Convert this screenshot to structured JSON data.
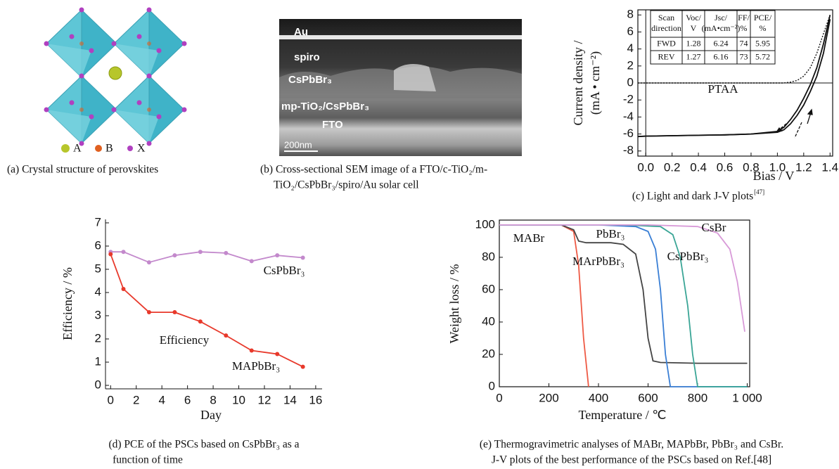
{
  "panel_a": {
    "legend": [
      "A",
      "B",
      "X"
    ],
    "caption": "(a) Crystal structure of perovskites"
  },
  "panel_b": {
    "layers": [
      "Au",
      "spiro",
      "CsPbBr₃",
      "mp-TiO₂/CsPbBr₃",
      "FTO"
    ],
    "scale": "200nm",
    "caption": [
      "(b) Cross-sectional SEM image of a FTO/c-TiO₂/m-",
      "TiO₂/CsPbBr₃/spiro/Au solar cell"
    ]
  },
  "chart_data": [
    {
      "type": "line",
      "xlabel": "Bias / V",
      "ylabel": [
        "Current density /",
        "(mA • cm⁻²)"
      ],
      "caption": [
        "(c) Light and dark J-V plots"
      ],
      "caption_ref": "[47]",
      "annotations": [
        "PTAA"
      ],
      "x": [
        -0.06,
        0,
        0.2,
        0.4,
        0.6,
        0.8,
        1.0,
        1.05,
        1.1,
        1.15,
        1.2,
        1.25,
        1.3,
        1.35,
        1.4
      ],
      "series": [
        {
          "color": "#111111",
          "values": [
            -6.3,
            -6.25,
            -6.2,
            -6.15,
            -6.1,
            -6.0,
            -5.8,
            -5.5,
            -4.8,
            -3.8,
            -2.6,
            -1.0,
            0.8,
            3.5,
            7.5
          ]
        },
        {
          "color": "#111111",
          "values": [
            -6.3,
            -6.25,
            -6.2,
            -6.15,
            -6.1,
            -6.0,
            -5.7,
            -5.2,
            -4.3,
            -3.2,
            -1.8,
            -0.2,
            1.8,
            4.6,
            8.0
          ]
        },
        {
          "color": "#111111",
          "dashed": true,
          "values": [
            0,
            0,
            0,
            0,
            0,
            0,
            0,
            0,
            0.1,
            0.3,
            0.8,
            1.8,
            3.5,
            5.8,
            8.0
          ]
        }
      ],
      "table": {
        "header": [
          [
            "Scan",
            "direction"
          ],
          [
            "Voc/",
            "V"
          ],
          [
            "Jsc/",
            "(mA•cm⁻²)"
          ],
          [
            "FF/",
            "%"
          ],
          [
            "PCE/",
            "%"
          ]
        ],
        "rows": [
          [
            "FWD",
            1.28,
            6.24,
            74,
            5.95
          ],
          [
            "REV",
            1.27,
            6.16,
            73,
            5.72
          ]
        ]
      },
      "xlim": [
        -0.06,
        1.42
      ],
      "ylim": [
        -8.6,
        8.6
      ],
      "xticks": [
        {
          "value": 0,
          "label": "0.0"
        },
        0.2,
        0.4,
        0.6,
        0.8,
        {
          "value": 1,
          "label": "1.0"
        },
        1.2,
        1.4
      ],
      "yticks": [
        -8,
        -6,
        -4,
        -2,
        0,
        2,
        4,
        6,
        8
      ]
    },
    {
      "type": "line",
      "xlabel": "Day",
      "ylabel": "Efficiency / %",
      "caption": [
        "(d) PCE of the PSCs based on CsPbBr₃ as a",
        "function of time"
      ],
      "annotations": [
        "Efficiency"
      ],
      "x": [
        0,
        1,
        3,
        5,
        7,
        9,
        11,
        13,
        15
      ],
      "markers": true,
      "series": [
        {
          "name": "CsPbBr₃",
          "color": "#c389cc",
          "values": [
            5.75,
            5.75,
            5.3,
            5.6,
            5.75,
            5.7,
            5.35,
            5.6,
            5.5
          ]
        },
        {
          "name": "MAPbBr₃",
          "color": "#e8392b",
          "values": [
            5.65,
            4.15,
            3.15,
            3.15,
            2.75,
            2.15,
            1.5,
            1.35,
            0.8
          ]
        }
      ],
      "xlim": [
        -0.4,
        16.5
      ],
      "ylim": [
        -0.15,
        7.15
      ],
      "xticks": [
        0,
        2,
        4,
        6,
        8,
        10,
        12,
        14,
        16
      ],
      "yticks": [
        0,
        1,
        2,
        3,
        4,
        5,
        6,
        7
      ]
    },
    {
      "type": "line",
      "xlabel": "Temperature / ℃",
      "ylabel": "Weight loss / %",
      "caption": [
        "(e) Thermogravimetric analyses of MABr, MAPbBr, PbBr₃ and  CsBr.",
        "J-V plots of the best performance of the PSCs based on Ref.[48]"
      ],
      "series": [
        {
          "name": "MABr",
          "color": "#ee5a45",
          "x": [
            0,
            250,
            300,
            320,
            340,
            360
          ],
          "values": [
            100,
            100,
            96,
            75,
            30,
            0
          ]
        },
        {
          "name": "MArPbBr₃",
          "color": "#444444",
          "x": [
            0,
            250,
            300,
            320,
            350,
            450,
            500,
            550,
            580,
            600,
            620,
            650,
            800,
            1000
          ],
          "values": [
            100,
            100,
            97,
            90,
            89,
            89,
            88,
            82,
            60,
            30,
            16,
            15,
            14.5,
            14.5
          ]
        },
        {
          "name": "PbBr₃",
          "color": "#3a7fd5",
          "x": [
            0,
            400,
            550,
            600,
            630,
            650,
            670,
            690,
            1000
          ],
          "values": [
            100,
            100,
            99,
            96,
            85,
            60,
            20,
            0,
            0
          ]
        },
        {
          "name": "CsPbBr₃",
          "color": "#3aa596",
          "x": [
            0,
            500,
            650,
            700,
            730,
            760,
            780,
            800,
            1000
          ],
          "values": [
            100,
            100,
            99,
            94,
            80,
            50,
            20,
            0,
            0
          ]
        },
        {
          "name": "CsBr",
          "color": "#d89ad8",
          "x": [
            0,
            600,
            800,
            880,
            930,
            960,
            990
          ],
          "values": [
            100,
            100,
            99,
            95,
            85,
            65,
            34
          ]
        }
      ],
      "xlim": [
        0,
        1010
      ],
      "ylim": [
        0,
        103
      ],
      "xticks": [
        0,
        200,
        400,
        600,
        800,
        {
          "value": 1000,
          "label": "1 000"
        }
      ],
      "yticks": [
        0,
        20,
        40,
        60,
        80,
        100
      ]
    }
  ]
}
